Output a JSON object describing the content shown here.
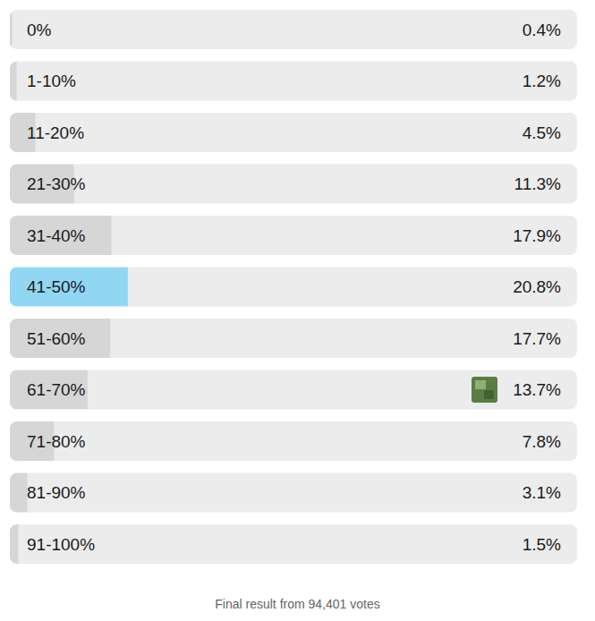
{
  "chart_data": {
    "type": "bar",
    "orientation": "horizontal",
    "categories": [
      "0%",
      "1-10%",
      "11-20%",
      "21-30%",
      "31-40%",
      "41-50%",
      "51-60%",
      "61-70%",
      "71-80%",
      "81-90%",
      "91-100%"
    ],
    "values": [
      0.4,
      1.2,
      4.5,
      11.3,
      17.9,
      20.8,
      17.7,
      13.7,
      7.8,
      3.1,
      1.5
    ],
    "value_labels": [
      "0.4%",
      "1.2%",
      "4.5%",
      "11.3%",
      "17.9%",
      "20.8%",
      "17.7%",
      "13.7%",
      "7.8%",
      "3.1%",
      "1.5%"
    ],
    "colors": [
      "#d6d6d6",
      "#d6d6d6",
      "#d6d6d6",
      "#d6d6d6",
      "#d6d6d6",
      "#91d6f3",
      "#d6d6d6",
      "#d6d6d6",
      "#d6d6d6",
      "#d6d6d6",
      "#d6d6d6"
    ],
    "xlim": [
      0,
      100
    ],
    "data_labels": true,
    "tick_labels": "y",
    "annotations": [
      "Final result from 94,401 votes"
    ]
  }
}
